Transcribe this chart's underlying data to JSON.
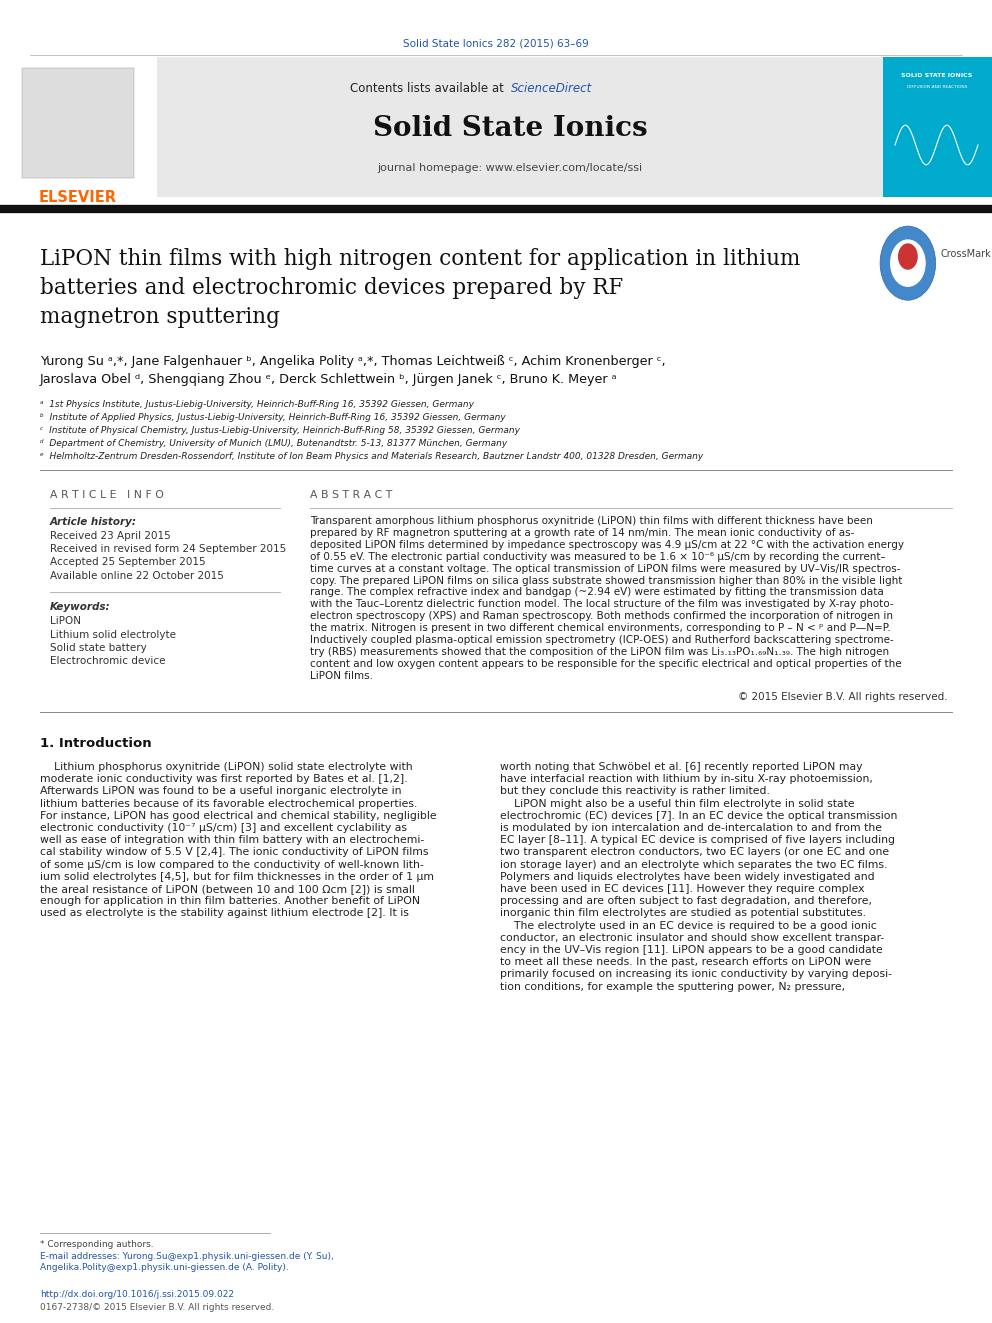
{
  "page_width": 9.92,
  "page_height": 13.23,
  "background_color": "#ffffff",
  "journal_ref": "Solid State Ionics 282 (2015) 63–69",
  "journal_ref_color": "#2255aa",
  "journal_name": "Solid State Ionics",
  "contents_text": "Contents lists available at ",
  "sciencedirect_text": "ScienceDirect",
  "sciencedirect_color": "#2255aa",
  "journal_homepage": "journal homepage: www.elsevier.com/locate/ssi",
  "header_bg_color": "#e8e8e8",
  "header_right_bg_color": "#00aacc",
  "title_line1": "LiPON thin films with high nitrogen content for application in lithium",
  "title_line2": "batteries and electrochromic devices prepared by RF",
  "title_line3": "magnetron sputtering",
  "authors_line1": "Yurong Su ᵃ,*, Jane Falgenhauer ᵇ, Angelika Polity ᵃ,*, Thomas Leichtweiß ᶜ, Achim Kronenberger ᶜ,",
  "authors_line2": "Jaroslava Obel ᵈ, Shengqiang Zhou ᵉ, Derck Schlettwein ᵇ, Jürgen Janek ᶜ, Bruno K. Meyer ᵃ",
  "affil_a": "ᵃ  1st Physics Institute, Justus-Liebig-University, Heinrich-Buff-Ring 16, 35392 Giessen, Germany",
  "affil_b": "ᵇ  Institute of Applied Physics, Justus-Liebig-University, Heinrich-Buff-Ring 16, 35392 Giessen, Germany",
  "affil_c": "ᶜ  Institute of Physical Chemistry, Justus-Liebig-University, Heinrich-Buff-Ring 58, 35392 Giessen, Germany",
  "affil_d": "ᵈ  Department of Chemistry, University of Munich (LMU), Butenandtstr. 5-13, 81377 München, Germany",
  "affil_e": "ᵉ  Helmholtz-Zentrum Dresden-Rossendorf, Institute of Ion Beam Physics and Materials Research, Bautzner Landstr 400, 01328 Dresden, Germany",
  "article_info_title": "A R T I C L E   I N F O",
  "article_history_title": "Article history:",
  "received": "Received 23 April 2015",
  "received_revised": "Received in revised form 24 September 2015",
  "accepted": "Accepted 25 September 2015",
  "available": "Available online 22 October 2015",
  "keywords_title": "Keywords:",
  "keywords": [
    "LiPON",
    "Lithium solid electrolyte",
    "Solid state battery",
    "Electrochromic device"
  ],
  "abstract_title": "A B S T R A C T",
  "copyright": "© 2015 Elsevier B.V. All rights reserved.",
  "intro_title": "1. Introduction",
  "footnote_corresponding": "* Corresponding authors.",
  "footnote_email1": "E-mail addresses: Yurong.Su@exp1.physik.uni-giessen.de (Y. Su),",
  "footnote_email2": "Angelika.Polity@exp1.physik.uni-giessen.de (A. Polity).",
  "doi": "http://dx.doi.org/10.1016/j.ssi.2015.09.022",
  "issn": "0167-2738/© 2015 Elsevier B.V. All rights reserved.",
  "elsevier_color": "#ff6600",
  "link_color": "#2255aa",
  "abstract_lines": [
    "Transparent amorphous lithium phosphorus oxynitride (LiPON) thin films with different thickness have been",
    "prepared by RF magnetron sputtering at a growth rate of 14 nm/min. The mean ionic conductivity of as-",
    "deposited LiPON films determined by impedance spectroscopy was 4.9 μS/cm at 22 °C with the activation energy",
    "of 0.55 eV. The electronic partial conductivity was measured to be 1.6 × 10⁻⁶ μS/cm by recording the current–",
    "time curves at a constant voltage. The optical transmission of LiPON films were measured by UV–Vis/IR spectros-",
    "copy. The prepared LiPON films on silica glass substrate showed transmission higher than 80% in the visible light",
    "range. The complex refractive index and bandgap (~2.94 eV) were estimated by fitting the transmission data",
    "with the Tauc–Lorentz dielectric function model. The local structure of the film was investigated by X-ray photo-",
    "electron spectroscopy (XPS) and Raman spectroscopy. Both methods confirmed the incorporation of nitrogen in",
    "the matrix. Nitrogen is present in two different chemical environments, corresponding to P – N < ᵖ and P—N=P.",
    "Inductively coupled plasma-optical emission spectrometry (ICP-OES) and Rutherford backscattering spectrome-",
    "try (RBS) measurements showed that the composition of the LiPON film was Li₃.₁₃PO₁.₆₉N₁.₃₉. The high nitrogen",
    "content and low oxygen content appears to be responsible for the specific electrical and optical properties of the",
    "LiPON films."
  ],
  "intro_left_lines": [
    "    Lithium phosphorus oxynitride (LiPON) solid state electrolyte with",
    "moderate ionic conductivity was first reported by Bates et al. [1,2].",
    "Afterwards LiPON was found to be a useful inorganic electrolyte in",
    "lithium batteries because of its favorable electrochemical properties.",
    "For instance, LiPON has good electrical and chemical stability, negligible",
    "electronic conductivity (10⁻⁷ μS/cm) [3] and excellent cyclability as",
    "well as ease of integration with thin film battery with an electrochemi-",
    "cal stability window of 5.5 V [2,4]. The ionic conductivity of LiPON films",
    "of some μS/cm is low compared to the conductivity of well-known lith-",
    "ium solid electrolytes [4,5], but for film thicknesses in the order of 1 μm",
    "the areal resistance of LiPON (between 10 and 100 Ωcm [2]) is small",
    "enough for application in thin film batteries. Another benefit of LiPON",
    "used as electrolyte is the stability against lithium electrode [2]. It is"
  ],
  "intro_right_lines": [
    "worth noting that Schwöbel et al. [6] recently reported LiPON may",
    "have interfacial reaction with lithium by in-situ X-ray photoemission,",
    "but they conclude this reactivity is rather limited.",
    "    LiPON might also be a useful thin film electrolyte in solid state",
    "electrochromic (EC) devices [7]. In an EC device the optical transmission",
    "is modulated by ion intercalation and de-intercalation to and from the",
    "EC layer [8–11]. A typical EC device is comprised of five layers including",
    "two transparent electron conductors, two EC layers (or one EC and one",
    "ion storage layer) and an electrolyte which separates the two EC films.",
    "Polymers and liquids electrolytes have been widely investigated and",
    "have been used in EC devices [11]. However they require complex",
    "processing and are often subject to fast degradation, and therefore,",
    "inorganic thin film electrolytes are studied as potential substitutes.",
    "    The electrolyte used in an EC device is required to be a good ionic",
    "conductor, an electronic insulator and should show excellent transpar-",
    "ency in the UV–Vis region [11]. LiPON appears to be a good candidate",
    "to meet all these needs. In the past, research efforts on LiPON were",
    "primarily focused on increasing its ionic conductivity by varying deposi-",
    "tion conditions, for example the sputtering power, N₂ pressure,"
  ]
}
